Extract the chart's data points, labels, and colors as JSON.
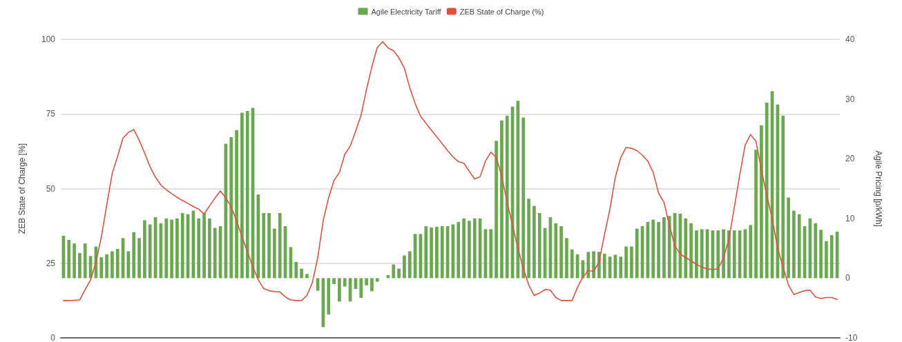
{
  "chart_data": {
    "type": "bar",
    "ylabel": "ZEB State of Charge [%]",
    "y2label": "Agile Pricing [p/kWh]",
    "categories": [
      null,
      null,
      null,
      null,
      null,
      null,
      null,
      null,
      null,
      null,
      null,
      null,
      null,
      null,
      null,
      null,
      null,
      null,
      null,
      null,
      null,
      null,
      null,
      null,
      null,
      null,
      null,
      null,
      null,
      null,
      null,
      null,
      null,
      null,
      null,
      null,
      null,
      null,
      null,
      null,
      null,
      null,
      null,
      null,
      null,
      null,
      null,
      null,
      null,
      null,
      null,
      null,
      null,
      null,
      null,
      null,
      null,
      null,
      null,
      null,
      null,
      null,
      null,
      null,
      null,
      null,
      null,
      null,
      null,
      null,
      null,
      null,
      null,
      null,
      null,
      null,
      null,
      null,
      null,
      null,
      null,
      null,
      null,
      null,
      null,
      null,
      null,
      null,
      null,
      null,
      null,
      null,
      null,
      null,
      null,
      null,
      null,
      null,
      null,
      null,
      null,
      null,
      null,
      null,
      null,
      null,
      null,
      null,
      null,
      null,
      null,
      null,
      null,
      null,
      null,
      null,
      null,
      null,
      null,
      null,
      null,
      null,
      null,
      null,
      null,
      null,
      null,
      null,
      null,
      null,
      null,
      null,
      null,
      null,
      null,
      null,
      null,
      null,
      null,
      null,
      null,
      null,
      null,
      null
    ],
    "series": [
      {
        "name": "Agile Electricity Tariff",
        "axis": "y2",
        "color": "#6aa84f",
        "values": [
          7.1,
          6.4,
          5.8,
          4.2,
          5.8,
          3.7,
          5.3,
          3.5,
          4.0,
          4.5,
          4.9,
          6.7,
          4.5,
          7.7,
          6.7,
          9.7,
          9.0,
          10.2,
          9.2,
          10.0,
          9.8,
          10.0,
          10.9,
          10.7,
          11.3,
          10.0,
          10.9,
          10.0,
          8.4,
          8.7,
          22.5,
          23.6,
          24.8,
          27.7,
          28.0,
          28.5,
          14.0,
          10.9,
          10.9,
          8.3,
          10.9,
          8.7,
          5.2,
          2.7,
          1.6,
          0.7,
          0,
          -2.1,
          -8.2,
          -6.1,
          -1.0,
          -3.9,
          -1.4,
          -3.9,
          -1.8,
          -3.3,
          -1.2,
          -2.2,
          -0.6,
          0,
          0.5,
          2.3,
          1.6,
          3.8,
          4.5,
          7.4,
          7.4,
          8.7,
          8.5,
          8.6,
          8.7,
          8.7,
          9.0,
          9.4,
          10.0,
          9.6,
          10.0,
          10.0,
          8.2,
          8.2,
          23.0,
          26.4,
          27.2,
          28.7,
          29.7,
          26.9,
          13.3,
          12.1,
          10.9,
          8.4,
          10.2,
          9.2,
          8.7,
          6.7,
          4.8,
          4.0,
          3.0,
          4.4,
          4.5,
          4.4,
          4.1,
          3.6,
          3.9,
          3.6,
          5.3,
          5.3,
          8.3,
          8.7,
          9.4,
          9.8,
          9.4,
          10.2,
          10.4,
          10.9,
          10.8,
          10.0,
          9.2,
          8.0,
          8.2,
          8.2,
          8.0,
          8.0,
          8.2,
          8.0,
          8.0,
          8.0,
          8.2,
          8.9,
          21.5,
          25.6,
          29.4,
          31.3,
          29.1,
          27.2,
          13.5,
          11.3,
          10.7,
          8.7,
          10.0,
          9.2,
          8.1,
          6.2,
          7.2,
          7.8
        ]
      },
      {
        "name": "ZEB State of Charge (%)",
        "type": "line",
        "axis": "y",
        "color": "#e0503c",
        "values": [
          12.5,
          12.5,
          12.6,
          12.7,
          16.2,
          19.4,
          25.4,
          33.8,
          44.6,
          55,
          60.8,
          66.9,
          68.8,
          69.8,
          66.2,
          61.9,
          57.3,
          53.8,
          51.2,
          49.6,
          48.3,
          47.1,
          46,
          45,
          44,
          43.1,
          41.5,
          44.2,
          46.8,
          49.2,
          46.9,
          43.8,
          39.2,
          33.8,
          28.8,
          23.8,
          19.5,
          16.5,
          15.8,
          15.5,
          15.4,
          13.7,
          12.7,
          12.5,
          12.5,
          14.2,
          18.5,
          26.9,
          39.2,
          46.9,
          52.7,
          55.4,
          61.5,
          64.2,
          69.2,
          74.6,
          83.1,
          90.8,
          97.3,
          99.2,
          97.1,
          96.2,
          93.8,
          90.4,
          83.8,
          78.5,
          74.2,
          71.9,
          69.6,
          67.3,
          65,
          62.7,
          60.6,
          59,
          58.5,
          55.8,
          53.2,
          54,
          59.2,
          62.2,
          60.4,
          54.2,
          45.4,
          37.7,
          30,
          23.1,
          17.7,
          14.2,
          15,
          16.2,
          16,
          13.5,
          12.5,
          12.5,
          12.5,
          16.9,
          20.4,
          22.5,
          22.3,
          25.4,
          34.6,
          43.1,
          53.8,
          60.4,
          63.8,
          63.5,
          62.7,
          61.2,
          59.2,
          55.4,
          48.5,
          45.4,
          37.7,
          30.8,
          28.1,
          26.9,
          25.8,
          24.6,
          23.7,
          23.1,
          22.9,
          23.1,
          26.9,
          33.1,
          43.8,
          54.6,
          64.6,
          68.1,
          65.8,
          56.2,
          47.7,
          40,
          30,
          23.8,
          17.7,
          14.5,
          15.2,
          15.8,
          16,
          13.7,
          13.2,
          13.5,
          13.5,
          12.9
        ]
      }
    ],
    "ylim": [
      0,
      100
    ],
    "yticks": [
      0,
      25,
      50,
      75,
      100
    ],
    "y2lim": [
      -10,
      40
    ],
    "y2ticks": [
      -10,
      0,
      10,
      20,
      30,
      40
    ],
    "grid": "y",
    "legend": "top",
    "marker": "none",
    "line_style": "solid"
  }
}
